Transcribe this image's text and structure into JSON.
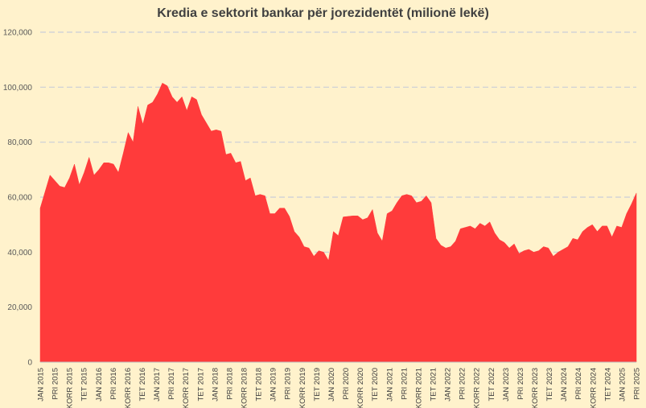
{
  "chart_data": {
    "type": "area",
    "title": "Kredia e sektorit bankar për jorezidentët (milionë lekë)",
    "xlabel": "",
    "ylabel": "",
    "ylim": [
      0,
      120000
    ],
    "yticks": [
      0,
      20000,
      40000,
      60000,
      80000,
      100000,
      120000
    ],
    "ytick_labels": [
      "0",
      "20,000",
      "40,000",
      "60,000",
      "80,000",
      "100,000",
      "120,000"
    ],
    "grid": true,
    "legend": "none",
    "colors": {
      "background": "#fff2cc",
      "area": "#ff3b3b",
      "grid": "#c9cdd8"
    },
    "x_labels": [
      "JAN 2015",
      "PRI 2015",
      "KORR 2015",
      "TET 2015",
      "JAN 2016",
      "PRI 2016",
      "KORR 2016",
      "TET 2016",
      "JAN 2017",
      "PRI 2017",
      "KORR 2017",
      "TET 2017",
      "JAN 2018",
      "PRI 2018",
      "KORR 2018",
      "TET 2018",
      "JAN 2019",
      "PRI 2019",
      "KORR 2019",
      "TET 2019",
      "JAN 2020",
      "PRI 2020",
      "KORR 2020",
      "TET 2020",
      "JAN 2021",
      "PRI 2021",
      "KORR 2021",
      "TET 2021",
      "JAN 2022",
      "PRI 2022",
      "KORR 2022",
      "TET 2022",
      "JAN 2023",
      "PRI 2023",
      "KORR 2023",
      "TET 2023",
      "JAN 2024",
      "PRI 2024",
      "KORR 2024",
      "TET 2024",
      "JAN 2025",
      "PRI 2025"
    ],
    "series": [
      {
        "values": [
          56000,
          62000,
          68000,
          66000,
          64000,
          63500,
          67000,
          72000,
          64500,
          69000,
          74500,
          68000,
          70000,
          72500,
          72500,
          72000,
          69000,
          76000,
          83500,
          80000,
          93000,
          86500,
          93500,
          94500,
          97500,
          101500,
          100500,
          96500,
          94500,
          96500,
          91500,
          96500,
          95500,
          90000,
          87000,
          84000,
          84500,
          84000,
          75500,
          76000,
          72500,
          73000,
          66000,
          67000,
          60500,
          61000,
          60500,
          54000,
          54000,
          56000,
          56000,
          53000,
          47500,
          45500,
          42000,
          41500,
          38500,
          40500,
          40000,
          37000,
          47500,
          46000,
          52800,
          53000,
          53200,
          53200,
          51800,
          52500,
          55500,
          47000,
          44000,
          54000,
          55000,
          58000,
          60500,
          61000,
          60500,
          58000,
          58500,
          60500,
          58000,
          45000,
          42500,
          41500,
          42000,
          44000,
          48500,
          49000,
          49500,
          48500,
          50500,
          49500,
          51000,
          47000,
          44500,
          43500,
          41500,
          43000,
          39500,
          40500,
          41000,
          40000,
          40500,
          42000,
          41500,
          38500,
          40000,
          41000,
          42000,
          45000,
          44500,
          47500,
          49000,
          50000,
          47500,
          49500,
          49500,
          45500,
          49500,
          49000,
          54000,
          57500,
          61500
        ]
      }
    ]
  }
}
